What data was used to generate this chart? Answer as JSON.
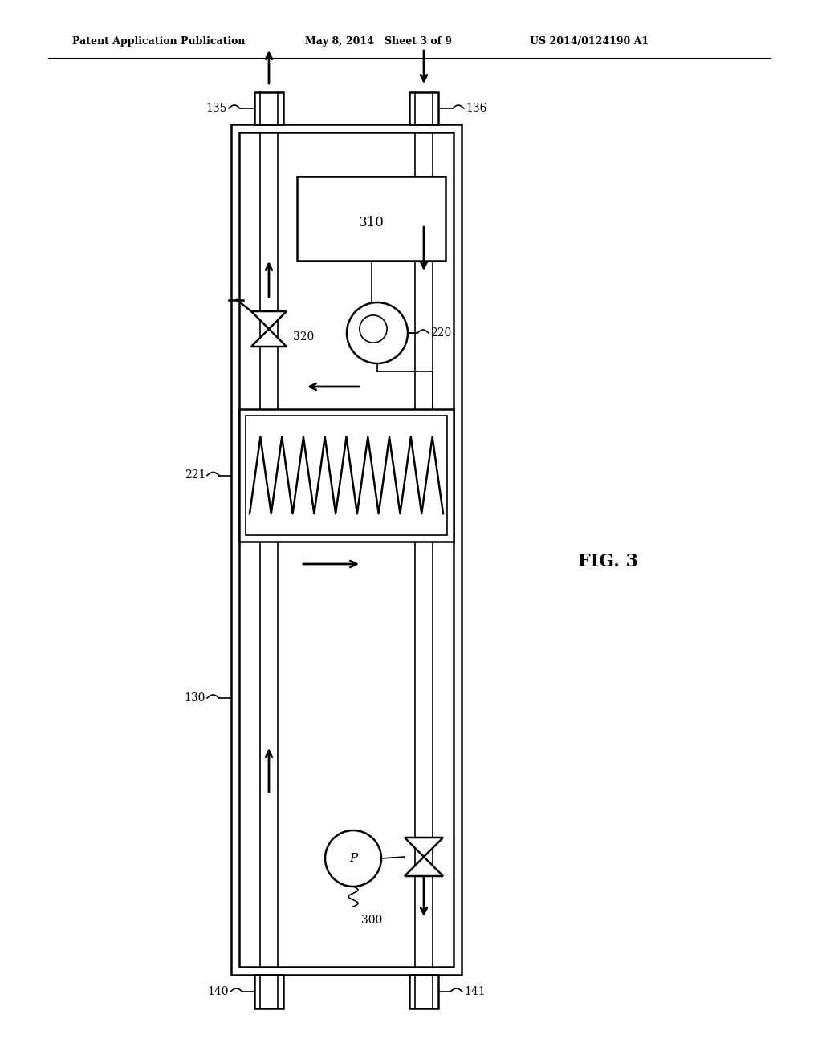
{
  "background_color": "#ffffff",
  "header_text1": "Patent Application Publication",
  "header_text2": "May 8, 2014   Sheet 3 of 9",
  "header_text3": "US 2014/0124190 A1",
  "fig_label": "FIG. 3"
}
